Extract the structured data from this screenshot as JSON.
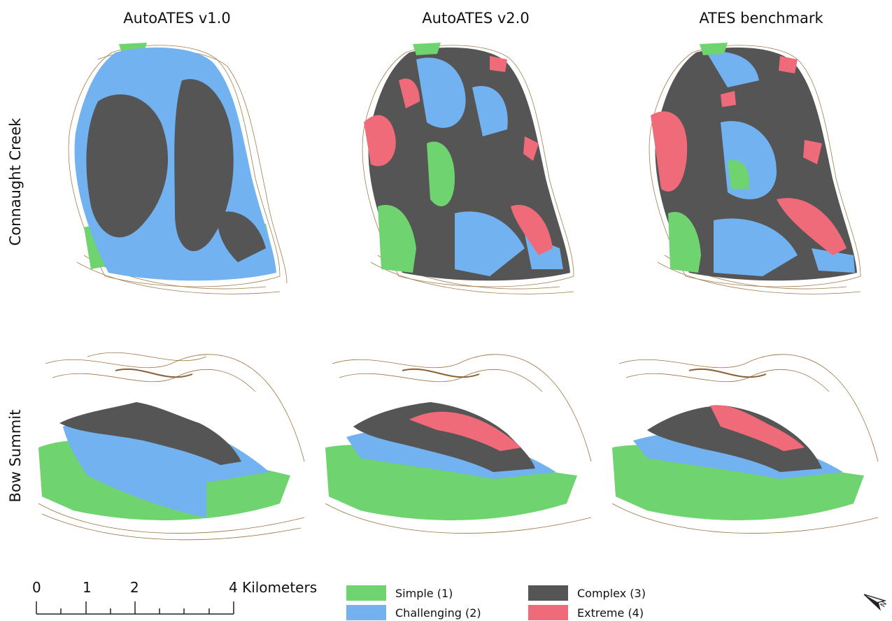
{
  "columns": [
    "AutoATES v1.0",
    "AutoATES v2.0",
    "ATES benchmark"
  ],
  "rows": [
    "Connaught Creek",
    "Bow Summit"
  ],
  "scale": {
    "ticks": [
      "0",
      "1",
      "2",
      "4 Kilometers"
    ]
  },
  "legend": [
    {
      "label": "Simple (1)",
      "color": "#6fd36f"
    },
    {
      "label": "Challenging (2)",
      "color": "#72b2f0"
    },
    {
      "label": "Complex (3)",
      "color": "#555555"
    },
    {
      "label": "Extreme (4)",
      "color": "#f06b7a"
    }
  ],
  "colors": {
    "contour": "#8b5a1e",
    "simple": "#6fd36f",
    "challenging": "#72b2f0",
    "complex": "#555555",
    "extreme": "#f06b7a"
  },
  "icons": {
    "north_arrow": "north-arrow-icon"
  }
}
